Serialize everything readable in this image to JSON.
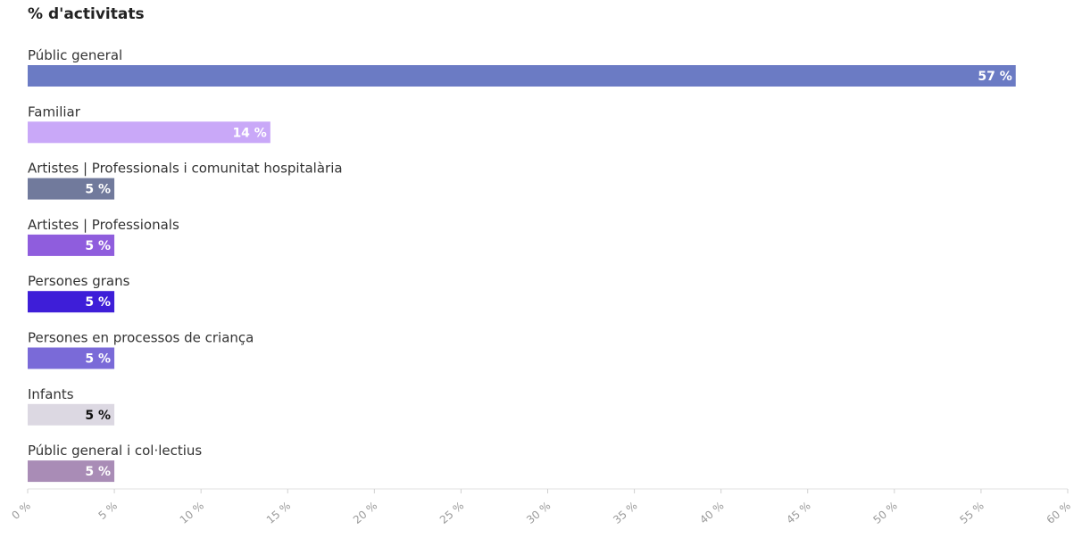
{
  "chart_data": {
    "type": "bar",
    "orientation": "horizontal",
    "title": "% d'activitats",
    "categories": [
      "Públic general",
      "Familiar",
      "Artistes | Professionals i comunitat hospitalària",
      "Artistes | Professionals",
      "Persones grans",
      "Persones en processos de criança",
      "Infants",
      "Públic general i col·lectius"
    ],
    "values": [
      57,
      14,
      5,
      5,
      5,
      5,
      5,
      5
    ],
    "value_labels": [
      "57 %",
      "14 %",
      "5 %",
      "5 %",
      "5 %",
      "5 %",
      "5 %",
      "5 %"
    ],
    "colors": [
      "#6b7bc4",
      "#c9a8f8",
      "#717a9c",
      "#8f5ddd",
      "#3e1ed8",
      "#7a6ad8",
      "#dcd8e2",
      "#a98cb6"
    ],
    "value_label_colors": [
      "#ffffff",
      "#ffffff",
      "#ffffff",
      "#ffffff",
      "#ffffff",
      "#ffffff",
      "#111111",
      "#ffffff"
    ],
    "xlim": [
      0,
      60
    ],
    "xticks": [
      0,
      5,
      10,
      15,
      20,
      25,
      30,
      35,
      40,
      45,
      50,
      55,
      60
    ],
    "xtick_labels": [
      "0 %",
      "5 %",
      "10 %",
      "15 %",
      "20 %",
      "25 %",
      "30 %",
      "35 %",
      "40 %",
      "45 %",
      "50 %",
      "55 %",
      "60 %"
    ],
    "grid": false,
    "legend": "none"
  }
}
